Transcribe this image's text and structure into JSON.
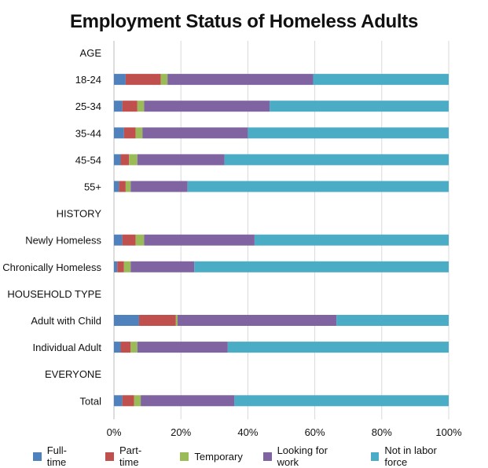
{
  "chart_data": {
    "type": "bar",
    "orientation": "horizontal",
    "stacked": true,
    "title": "Employment Status of Homeless Adults",
    "xlabel": "",
    "ylabel": "",
    "xlim": [
      0,
      100
    ],
    "x_ticks": [
      "0%",
      "20%",
      "40%",
      "60%",
      "80%",
      "100%"
    ],
    "grid": "vertical",
    "legend_position": "bottom",
    "categories": [
      {
        "label": "AGE",
        "header": true
      },
      {
        "label": "18-24"
      },
      {
        "label": "25-34"
      },
      {
        "label": "35-44"
      },
      {
        "label": "45-54"
      },
      {
        "label": "55+"
      },
      {
        "label": "HISTORY",
        "header": true
      },
      {
        "label": "Newly Homeless"
      },
      {
        "label": "Chronically Homeless"
      },
      {
        "label": "HOUSEHOLD TYPE",
        "header": true
      },
      {
        "label": "Adult with Child"
      },
      {
        "label": "Individual Adult"
      },
      {
        "label": "EVERYONE",
        "header": true
      },
      {
        "label": "Total"
      }
    ],
    "series": [
      {
        "name": "Full-time",
        "color": "#4f81bd",
        "values": [
          null,
          3.5,
          2.5,
          3.0,
          2.0,
          1.5,
          null,
          2.5,
          1.0,
          null,
          7.5,
          2.0,
          null,
          2.5
        ]
      },
      {
        "name": "Part-time",
        "color": "#c0504d",
        "values": [
          null,
          10.5,
          4.5,
          3.5,
          2.5,
          2.0,
          null,
          4.0,
          2.0,
          null,
          11.0,
          3.0,
          null,
          3.5
        ]
      },
      {
        "name": "Temporary",
        "color": "#9bbb59",
        "values": [
          null,
          2.0,
          2.0,
          2.0,
          2.5,
          1.5,
          null,
          2.5,
          2.0,
          null,
          0.5,
          2.0,
          null,
          2.0
        ]
      },
      {
        "name": "Looking for work",
        "color": "#8064a2",
        "values": [
          null,
          43.5,
          37.5,
          31.5,
          26.0,
          17.0,
          null,
          33.0,
          19.0,
          null,
          47.5,
          27.0,
          null,
          28.0
        ]
      },
      {
        "name": "Not in labor force",
        "color": "#4bacc6",
        "values": [
          null,
          40.5,
          53.5,
          60.0,
          67.0,
          78.0,
          null,
          58.0,
          76.0,
          null,
          33.5,
          66.0,
          null,
          64.0
        ]
      }
    ]
  }
}
